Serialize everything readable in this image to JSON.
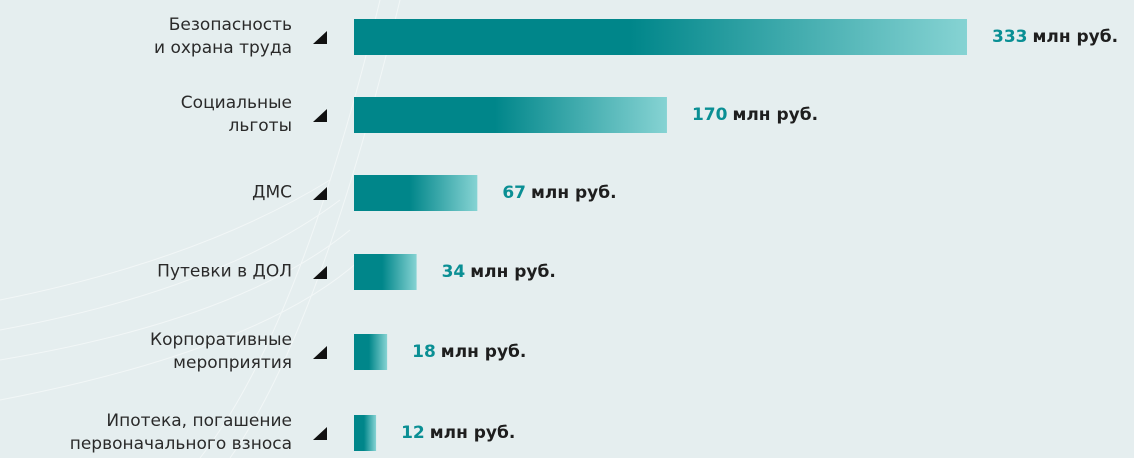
{
  "chart_data": {
    "type": "hbar",
    "categories": [
      "Безопасность\nи охрана труда",
      "Социальные\nльготы",
      "ДМС",
      "Путевки в ДОЛ",
      "Корпоративные\nмероприятия",
      "Ипотека, погашение\nпервоначального взноса"
    ],
    "values": [
      333,
      170,
      67,
      34,
      18,
      12
    ],
    "value_unit": "млн руб.",
    "color_start": "#00868a",
    "color_end": "#86d3d3",
    "value_color": "#0a8f94"
  }
}
